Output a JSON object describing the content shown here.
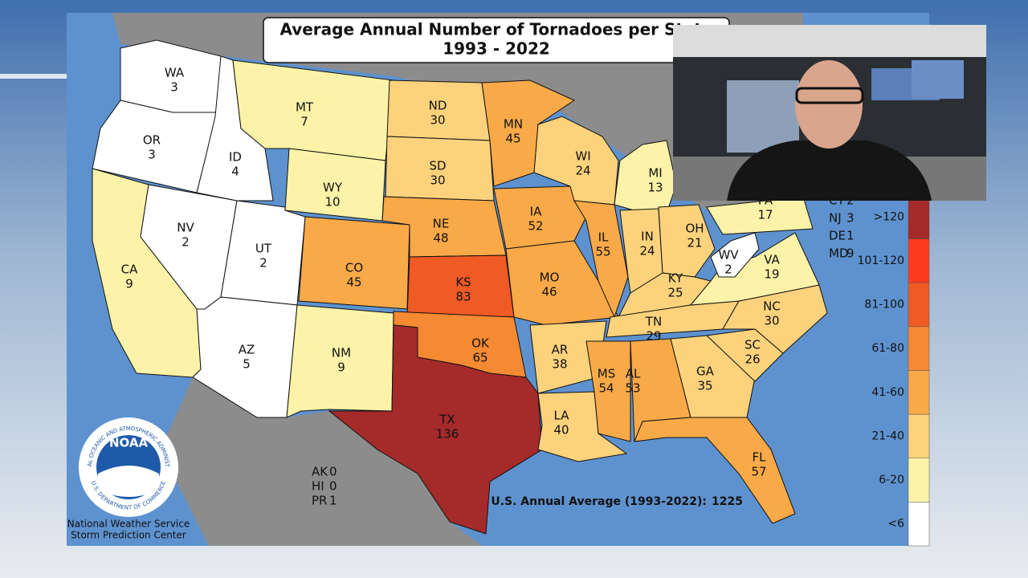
{
  "title": "Average Annual Number of Tornadoes per State",
  "subtitle": "1993 - 2022",
  "states": [
    {
      "abbr": "WA",
      "value": 3,
      "color": "#ffffff"
    },
    {
      "abbr": "OR",
      "value": 3,
      "color": "#ffffff"
    },
    {
      "abbr": "CA",
      "value": 9,
      "color": "#fdf3a8"
    },
    {
      "abbr": "NV",
      "value": 2,
      "color": "#ffffff"
    },
    {
      "abbr": "ID",
      "value": 4,
      "color": "#ffffff"
    },
    {
      "abbr": "MT",
      "value": 7,
      "color": "#fdf3a8"
    },
    {
      "abbr": "WY",
      "value": 10,
      "color": "#fdf3a8"
    },
    {
      "abbr": "UT",
      "value": 2,
      "color": "#ffffff"
    },
    {
      "abbr": "CO",
      "value": 45,
      "color": "#f9a948"
    },
    {
      "abbr": "AZ",
      "value": 5,
      "color": "#ffffff"
    },
    {
      "abbr": "NM",
      "value": 9,
      "color": "#fdf3a8"
    },
    {
      "abbr": "ND",
      "value": 30,
      "color": "#fcd27c"
    },
    {
      "abbr": "SD",
      "value": 30,
      "color": "#fcd27c"
    },
    {
      "abbr": "NE",
      "value": 48,
      "color": "#f9a948"
    },
    {
      "abbr": "KS",
      "value": 83,
      "color": "#f05a24"
    },
    {
      "abbr": "OK",
      "value": 65,
      "color": "#f58a33"
    },
    {
      "abbr": "TX",
      "value": 136,
      "color": "#a52a2a"
    },
    {
      "abbr": "MN",
      "value": 45,
      "color": "#f9a948"
    },
    {
      "abbr": "IA",
      "value": 52,
      "color": "#f9a948"
    },
    {
      "abbr": "MO",
      "value": 46,
      "color": "#f9a948"
    },
    {
      "abbr": "AR",
      "value": 38,
      "color": "#fcd27c"
    },
    {
      "abbr": "LA",
      "value": 40,
      "color": "#fcd27c"
    },
    {
      "abbr": "WI",
      "value": 24,
      "color": "#fcd27c"
    },
    {
      "abbr": "IL",
      "value": 55,
      "color": "#f9a948"
    },
    {
      "abbr": "MI",
      "value": 13,
      "color": "#fdf3a8"
    },
    {
      "abbr": "IN",
      "value": 24,
      "color": "#fcd27c"
    },
    {
      "abbr": "OH",
      "value": 21,
      "color": "#fcd27c"
    },
    {
      "abbr": "KY",
      "value": 25,
      "color": "#fcd27c"
    },
    {
      "abbr": "TN",
      "value": 29,
      "color": "#fcd27c"
    },
    {
      "abbr": "MS",
      "value": 54,
      "color": "#f9a948"
    },
    {
      "abbr": "AL",
      "value": 53,
      "color": "#f9a948"
    },
    {
      "abbr": "GA",
      "value": 35,
      "color": "#fcd27c"
    },
    {
      "abbr": "FL",
      "value": 57,
      "color": "#f9a948"
    },
    {
      "abbr": "SC",
      "value": 26,
      "color": "#fcd27c"
    },
    {
      "abbr": "NC",
      "value": 30,
      "color": "#fcd27c"
    },
    {
      "abbr": "VA",
      "value": 19,
      "color": "#fdf3a8"
    },
    {
      "abbr": "WV",
      "value": 2,
      "color": "#ffffff"
    },
    {
      "abbr": "PA",
      "value": 17,
      "color": "#fdf3a8"
    }
  ],
  "east_labels": [
    {
      "abbr": "CT",
      "value": 2
    },
    {
      "abbr": "NJ",
      "value": 3
    },
    {
      "abbr": "DE",
      "value": 1
    },
    {
      "abbr": "MD",
      "value": 9
    }
  ],
  "territories": [
    {
      "abbr": "AK",
      "value": 0
    },
    {
      "abbr": "HI",
      "value": 0
    },
    {
      "abbr": "PR",
      "value": 1
    }
  ],
  "us_average_label": "U.S. Annual Average (1993-2022):",
  "us_average": 1225,
  "legend": [
    {
      "label": ">120",
      "color": "#a52a2a"
    },
    {
      "label": "101-120",
      "color": "#ff3b1f"
    },
    {
      "label": "81-100",
      "color": "#f05a24"
    },
    {
      "label": "61-80",
      "color": "#f58a33"
    },
    {
      "label": "41-60",
      "color": "#f9a948"
    },
    {
      "label": "21-40",
      "color": "#fcd27c"
    },
    {
      "label": "6-20",
      "color": "#fdf3a8"
    },
    {
      "label": "<6",
      "color": "#ffffff"
    }
  ],
  "logo": {
    "name": "NOAA",
    "ring_top": "NATIONAL OCEANIC AND ATMOSPHERIC ADMINISTRATION",
    "ring_bottom": "U.S. DEPARTMENT OF COMMERCE"
  },
  "agency": [
    "National Weather Service",
    "Storm Prediction Center"
  ]
}
